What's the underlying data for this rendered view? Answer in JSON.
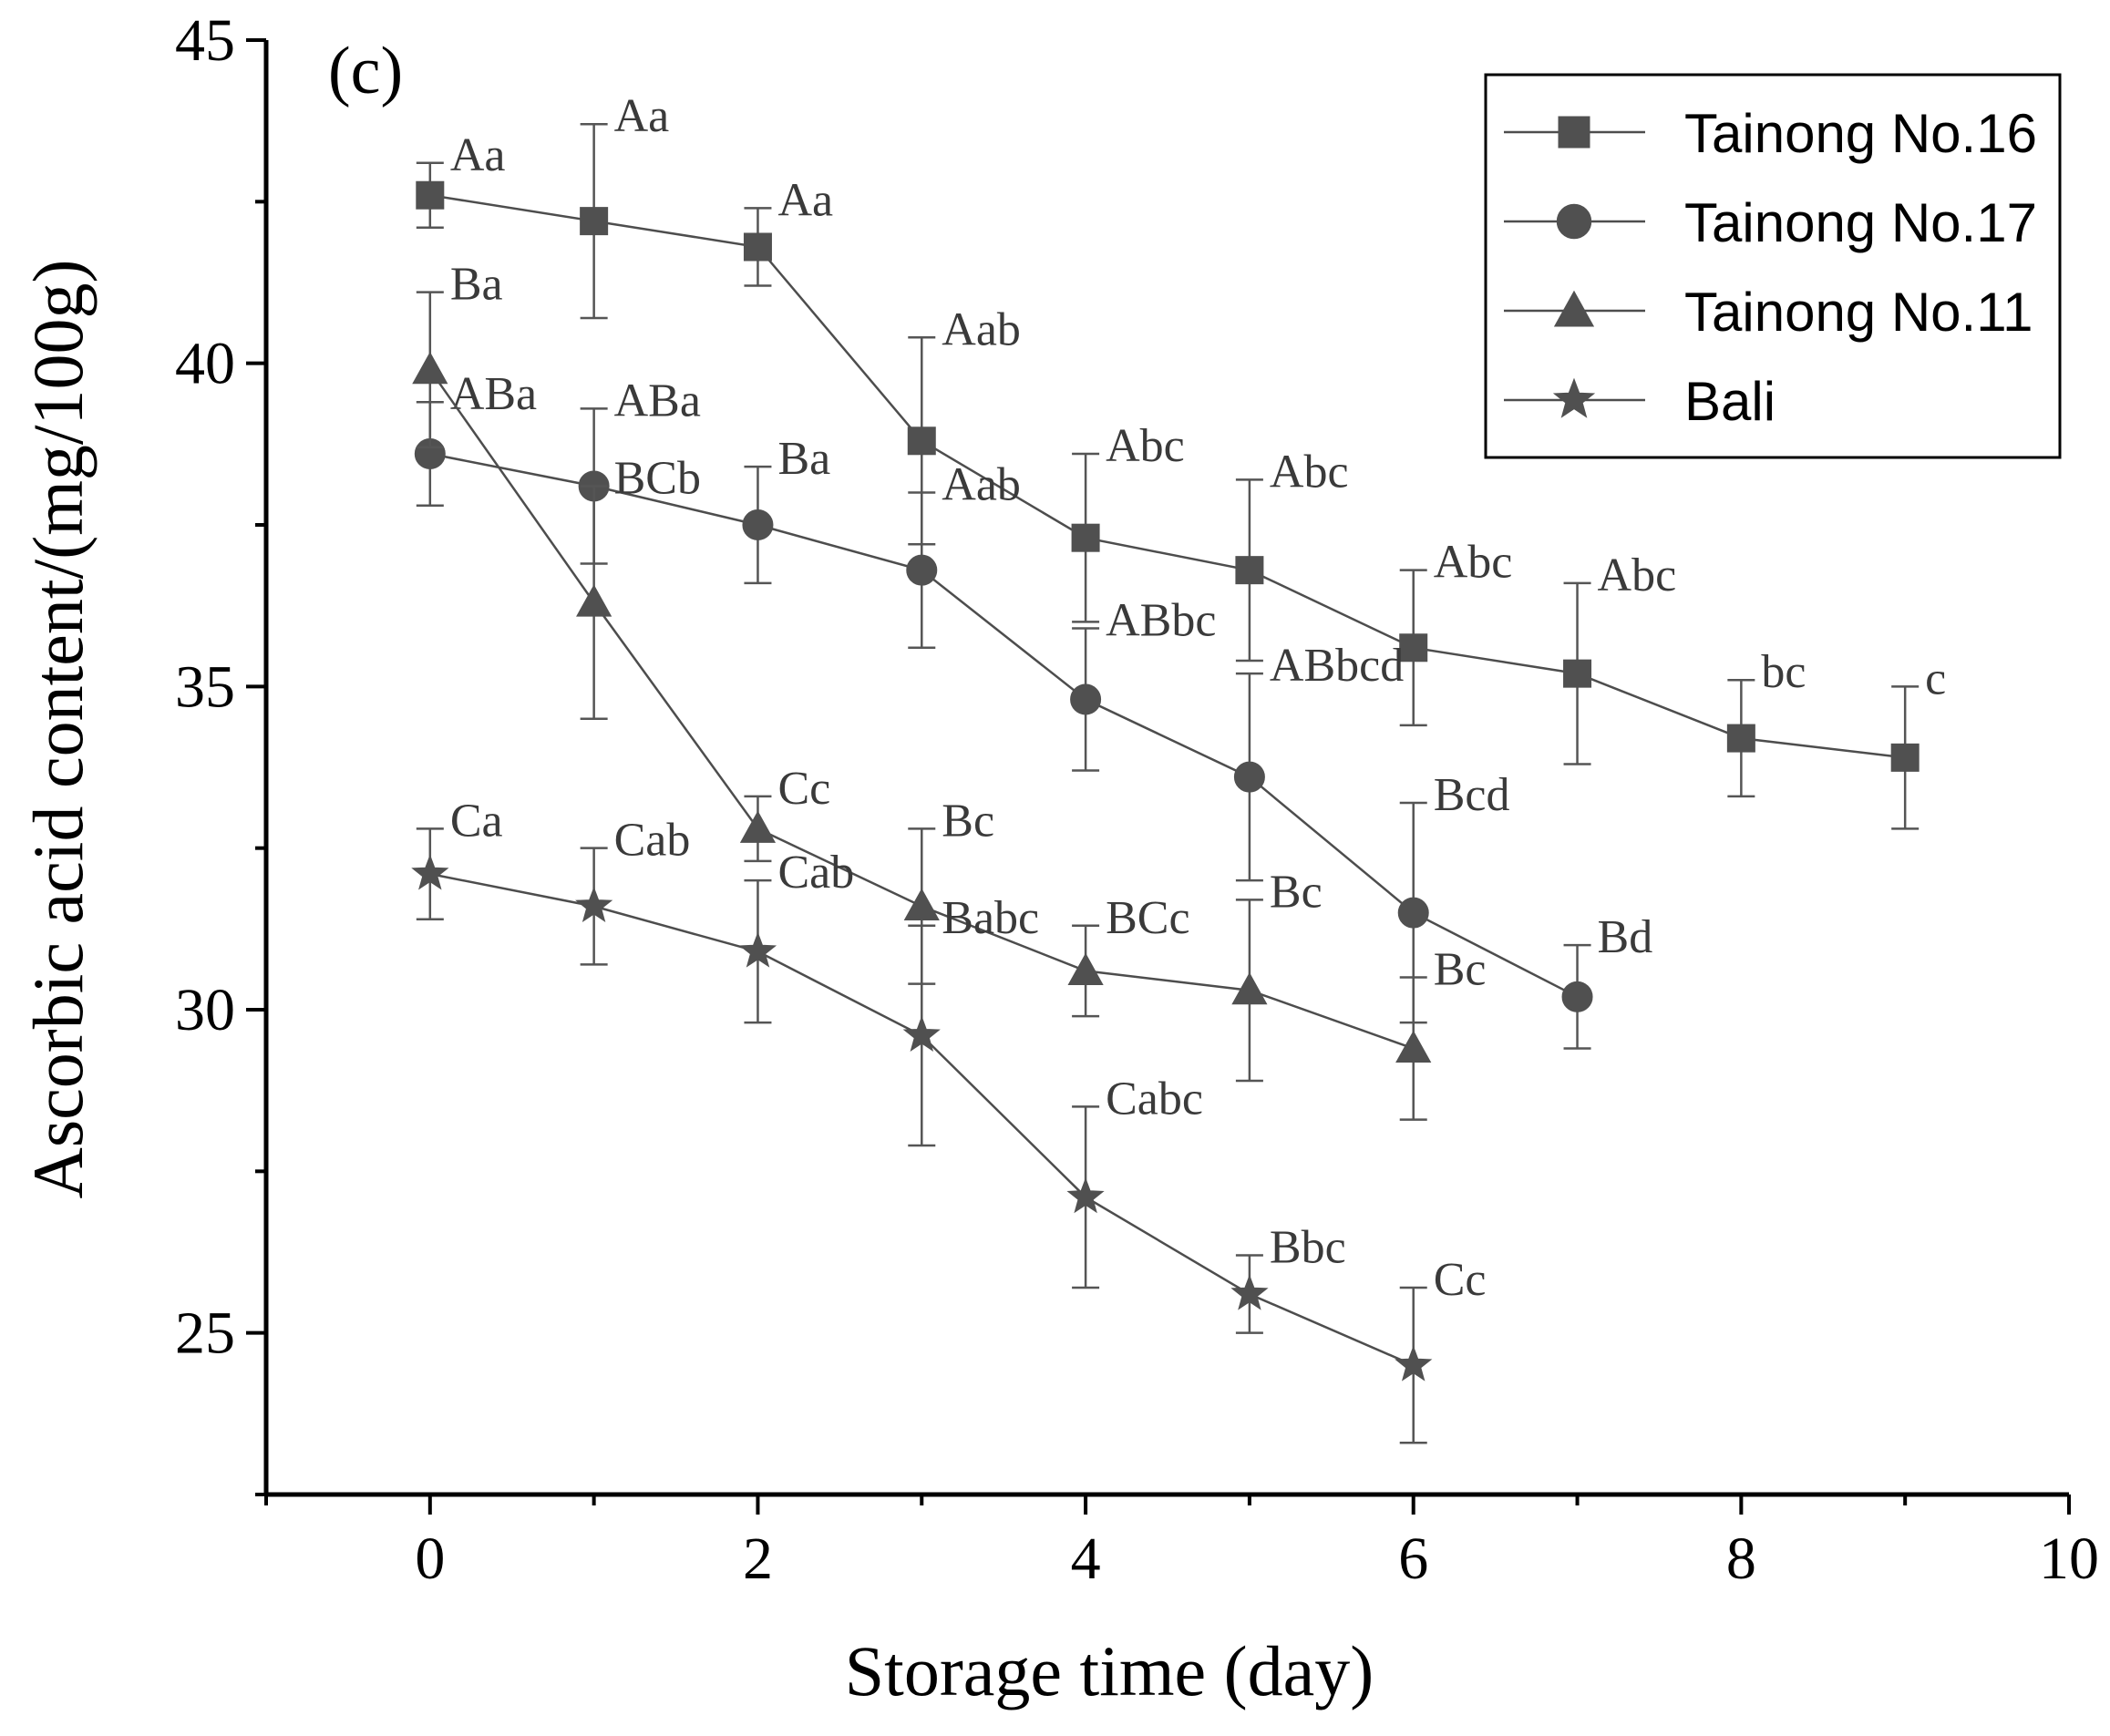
{
  "chart_data": {
    "type": "line",
    "panel_label": "(c)",
    "title": "",
    "xlabel": "Storage time (day)",
    "ylabel": "Ascorbic acid content/(mg/100g)",
    "xlim": [
      -1,
      10
    ],
    "ylim": [
      22.5,
      45
    ],
    "xticks": [
      0,
      2,
      4,
      6,
      8,
      10
    ],
    "yticks": [
      25,
      30,
      35,
      40,
      45
    ],
    "grid": false,
    "legend_position": "top-right",
    "series": [
      {
        "name": "Tainong No.16",
        "marker": "square",
        "x": [
          0,
          1,
          2,
          3,
          4,
          5,
          6,
          7,
          8,
          9
        ],
        "values": [
          42.6,
          42.2,
          41.8,
          38.8,
          37.3,
          36.8,
          35.6,
          35.2,
          34.2,
          33.9
        ],
        "errors": [
          0.5,
          1.5,
          0.6,
          1.6,
          1.3,
          1.4,
          1.2,
          1.4,
          0.9,
          1.1
        ],
        "labels": [
          "Aa",
          "Aa",
          "Aa",
          "Aab",
          "Abc",
          "Abc",
          "Abc",
          "Abc",
          "bc",
          "c"
        ]
      },
      {
        "name": "Tainong No.17",
        "marker": "circle",
        "x": [
          0,
          1,
          2,
          3,
          4,
          5,
          6,
          7
        ],
        "values": [
          38.6,
          38.1,
          37.5,
          36.8,
          34.8,
          33.6,
          31.5,
          30.2
        ],
        "errors": [
          0.8,
          1.2,
          0.9,
          1.2,
          1.1,
          1.6,
          1.7,
          0.8
        ],
        "labels": [
          "ABa",
          "ABa",
          "Ba",
          "Aab",
          "ABbc",
          "ABbcd",
          "Bcd",
          "Bd"
        ]
      },
      {
        "name": "Tainong No.11",
        "marker": "triangle",
        "x": [
          0,
          1,
          2,
          3,
          4,
          5,
          6
        ],
        "values": [
          39.9,
          36.3,
          32.8,
          31.6,
          30.6,
          30.3,
          29.4
        ],
        "errors": [
          1.2,
          1.8,
          0.5,
          1.2,
          0.7,
          1.4,
          1.1
        ],
        "labels": [
          "Ba",
          "BCb",
          "Cc",
          "Bc",
          "BCc",
          "Bc",
          "Bc"
        ]
      },
      {
        "name": "Bali",
        "marker": "star",
        "x": [
          0,
          1,
          2,
          3,
          4,
          5,
          6
        ],
        "values": [
          32.1,
          31.6,
          30.9,
          29.6,
          27.1,
          25.6,
          24.5
        ],
        "errors": [
          0.7,
          0.9,
          1.1,
          1.7,
          1.4,
          0.6,
          1.2
        ],
        "labels": [
          "Ca",
          "Cab",
          "Cab",
          "Babc",
          "Cabc",
          "Bbc",
          "Cc"
        ]
      }
    ]
  }
}
